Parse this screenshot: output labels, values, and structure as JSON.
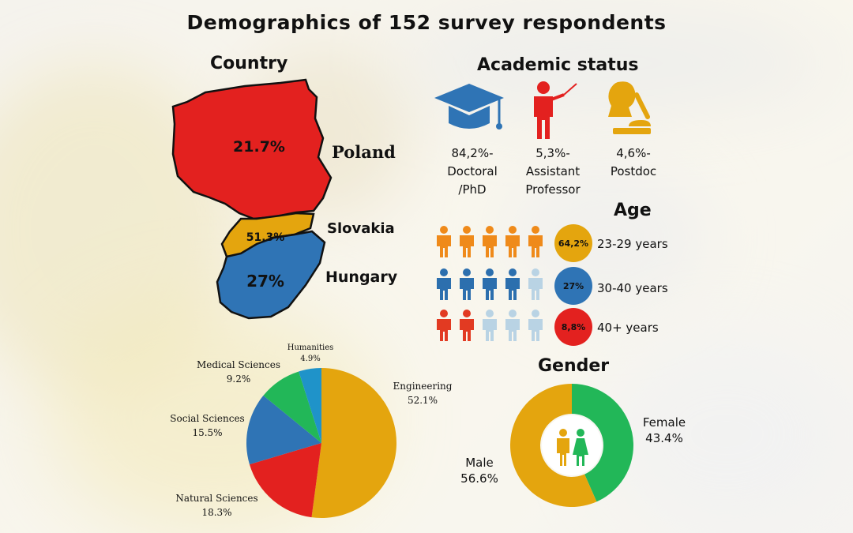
{
  "title": "Demographics of 152 survey respondents",
  "country": {
    "heading": "Country",
    "items": [
      {
        "name": "Poland",
        "pct": "21.7%",
        "color": "#e3211f"
      },
      {
        "name": "Slovakia",
        "pct": "51.3%",
        "color": "#e4a50e"
      },
      {
        "name": "Hungary",
        "pct": "27%",
        "color": "#2f74b5"
      }
    ]
  },
  "academic": {
    "heading": "Academic status",
    "items": [
      {
        "pct": "84,2%-",
        "line1": "Doctoral",
        "line2": "/PhD",
        "icon": "graduation-cap-icon",
        "color": "#2f74b5"
      },
      {
        "pct": "5,3%-",
        "line1": "Assistant",
        "line2": "Professor",
        "icon": "teacher-icon",
        "color": "#e3211f"
      },
      {
        "pct": "4,6%-",
        "line1": "Postdoc",
        "line2": "",
        "icon": "scientist-icon",
        "color": "#e4a50e"
      }
    ]
  },
  "age": {
    "heading": "Age",
    "groups": [
      {
        "pct": "64,2%",
        "label": "23-29 years",
        "color": "#e4a50e",
        "person_color": "#ef8a1a",
        "filled": 5
      },
      {
        "pct": "27%",
        "label": "30-40 years",
        "color": "#2f74b5",
        "person_color": "#2c6fae",
        "filled": 4
      },
      {
        "pct": "8,8%",
        "label": "40+ years",
        "color": "#e3211f",
        "person_color": "#e23a22",
        "filled": 2
      }
    ]
  },
  "gender": {
    "heading": "Gender",
    "female": {
      "label": "Female",
      "pct": "43.4%",
      "value": 43.4,
      "color": "#22b758"
    },
    "male": {
      "label": "Male",
      "pct": "56.6%",
      "value": 56.6,
      "color": "#e4a50e"
    }
  },
  "chart_data": [
    {
      "type": "pie",
      "title": "",
      "categories": [
        "Engineering",
        "Natural Sciences",
        "Social Sciences",
        "Medical Sciences",
        "Humanities"
      ],
      "values": [
        52.1,
        18.3,
        15.5,
        9.2,
        4.9
      ],
      "labels": [
        "52.1%",
        "18.3%",
        "15.5%",
        "9.2%",
        "4.9%"
      ],
      "colors": [
        "#e4a50e",
        "#e3211f",
        "#2f74b5",
        "#22b758",
        "#1f93c9"
      ]
    },
    {
      "type": "pie",
      "title": "Gender",
      "categories": [
        "Female",
        "Male"
      ],
      "values": [
        43.4,
        56.6
      ],
      "colors": [
        "#22b758",
        "#e4a50e"
      ]
    }
  ]
}
